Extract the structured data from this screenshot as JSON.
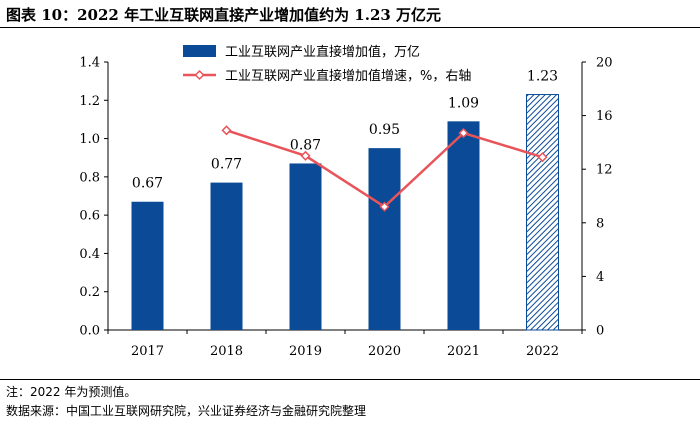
{
  "figure": {
    "title": "图表 10：2022 年工业互联网直接产业增加值约为 1.23 万亿元"
  },
  "chart_data": {
    "type": "bar",
    "categories": [
      "2017",
      "2018",
      "2019",
      "2020",
      "2021",
      "2022"
    ],
    "series": [
      {
        "name": "工业互联网产业直接增加值，万亿",
        "kind": "bar",
        "axis": "left",
        "values": [
          0.67,
          0.77,
          0.87,
          0.95,
          1.09,
          1.23
        ],
        "labels": [
          "0.67",
          "0.77",
          "0.87",
          "0.95",
          "1.09",
          "1.23"
        ],
        "hatched_index": 5
      },
      {
        "name": "工业互联网产业直接增加值增速，%，右轴",
        "kind": "line",
        "axis": "right",
        "values": [
          null,
          14.9,
          13.0,
          9.2,
          14.7,
          12.9
        ]
      }
    ],
    "y_left": {
      "lim": [
        0,
        1.4
      ],
      "ticks": [
        "0.0",
        "0.2",
        "0.4",
        "0.6",
        "0.8",
        "1.0",
        "1.2",
        "1.4"
      ]
    },
    "y_right": {
      "lim": [
        0,
        20
      ],
      "ticks": [
        "0",
        "4",
        "8",
        "12",
        "16",
        "20"
      ]
    },
    "colors": {
      "bar": "#0b4a96",
      "line": "#e8545a"
    }
  },
  "notes": {
    "note": "注：2022 年为预测值。",
    "source": "数据来源：中国工业互联网研究院，兴业证券经济与金融研究院整理"
  }
}
